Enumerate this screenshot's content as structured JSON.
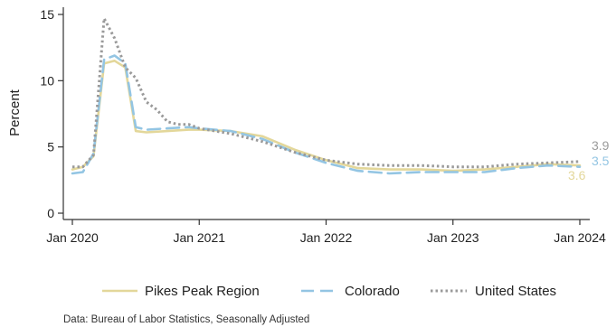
{
  "chart_data": {
    "type": "line",
    "ylabel": "Percent",
    "ylim": [
      0,
      15.5
    ],
    "y_ticks": [
      0,
      5,
      10,
      15
    ],
    "x_ticks": [
      {
        "value": 2020.0,
        "label": "Jan 2020"
      },
      {
        "value": 2021.0,
        "label": "Jan 2021"
      },
      {
        "value": 2022.0,
        "label": "Jan 2022"
      },
      {
        "value": 2023.0,
        "label": "Jan 2023"
      },
      {
        "value": 2024.0,
        "label": "Jan 2024"
      }
    ],
    "xlim": [
      2019.92,
      2024.08
    ],
    "grid": false,
    "legend_position": "bottom",
    "source": "Data: Bureau of Labor Statistics, Seasonally Adjusted",
    "series": [
      {
        "name": "Pikes Peak Region",
        "color": "#e3d79a",
        "style": "solid",
        "end_label": "3.6",
        "x": [
          2020.0,
          2020.083,
          2020.167,
          2020.25,
          2020.333,
          2020.417,
          2020.5,
          2020.583,
          2020.75,
          2020.917,
          2021.0,
          2021.25,
          2021.5,
          2021.75,
          2022.0,
          2022.25,
          2022.5,
          2022.75,
          2023.0,
          2023.25,
          2023.5,
          2023.75,
          2024.0
        ],
        "y": [
          3.3,
          3.5,
          4.3,
          11.3,
          11.5,
          11.0,
          6.2,
          6.1,
          6.2,
          6.3,
          6.3,
          6.2,
          5.8,
          4.8,
          4.0,
          3.4,
          3.3,
          3.3,
          3.2,
          3.3,
          3.5,
          3.7,
          3.6
        ]
      },
      {
        "name": "Colorado",
        "color": "#93c5e3",
        "style": "dashed",
        "end_label": "3.5",
        "x": [
          2020.0,
          2020.083,
          2020.167,
          2020.25,
          2020.333,
          2020.417,
          2020.5,
          2020.583,
          2020.75,
          2020.917,
          2021.0,
          2021.25,
          2021.5,
          2021.75,
          2022.0,
          2022.25,
          2022.5,
          2022.75,
          2023.0,
          2023.25,
          2023.5,
          2023.75,
          2024.0
        ],
        "y": [
          3.0,
          3.1,
          4.5,
          11.6,
          11.9,
          11.3,
          6.5,
          6.3,
          6.4,
          6.5,
          6.4,
          6.2,
          5.6,
          4.6,
          3.8,
          3.2,
          3.0,
          3.1,
          3.1,
          3.1,
          3.4,
          3.6,
          3.5
        ]
      },
      {
        "name": "United States",
        "color": "#9a9a9a",
        "style": "dotted",
        "end_label": "3.9",
        "x": [
          2020.0,
          2020.083,
          2020.167,
          2020.25,
          2020.333,
          2020.417,
          2020.5,
          2020.583,
          2020.667,
          2020.75,
          2020.833,
          2020.917,
          2021.0,
          2021.25,
          2021.5,
          2021.75,
          2022.0,
          2022.25,
          2022.5,
          2022.75,
          2023.0,
          2023.25,
          2023.5,
          2023.75,
          2024.0
        ],
        "y": [
          3.5,
          3.5,
          4.4,
          14.7,
          13.2,
          11.0,
          10.2,
          8.4,
          7.8,
          6.9,
          6.7,
          6.7,
          6.4,
          6.0,
          5.4,
          4.6,
          4.0,
          3.7,
          3.6,
          3.6,
          3.5,
          3.5,
          3.7,
          3.8,
          3.9
        ]
      }
    ]
  }
}
